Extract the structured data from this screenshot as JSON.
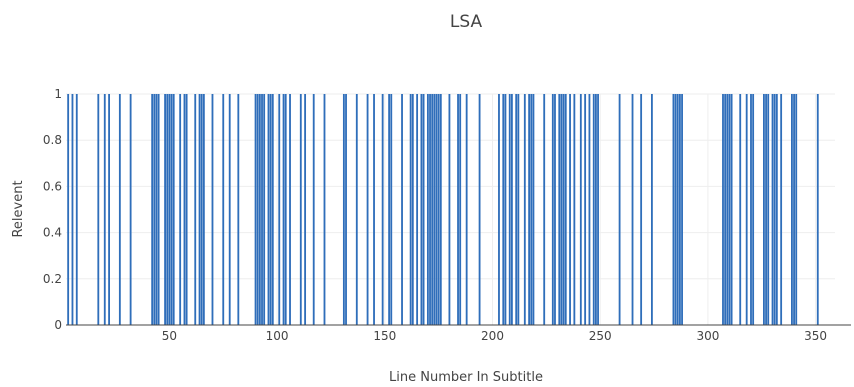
{
  "chart_data": {
    "type": "bar",
    "title": "LSA",
    "xlabel": "Line Number In Subtitle",
    "ylabel": "Relevent",
    "xlim": [
      2,
      359
    ],
    "ylim": [
      0,
      1
    ],
    "x_ticks": [
      50,
      100,
      150,
      200,
      250,
      300,
      350
    ],
    "x_tick_labels": [
      "50",
      "100",
      "150",
      "200",
      "250",
      "300",
      "350"
    ],
    "y_ticks": [
      0,
      0.2,
      0.4,
      0.6,
      0.8,
      1
    ],
    "y_tick_labels": [
      "0",
      "0.2",
      "0.4",
      "0.6",
      "0.8",
      "1"
    ],
    "grid": true,
    "bar_color": "#2f6eba",
    "x": [
      3,
      5,
      7,
      17,
      20,
      22,
      27,
      32,
      42,
      43,
      44,
      45,
      48,
      49,
      50,
      51,
      52,
      55,
      57,
      58,
      62,
      64,
      65,
      66,
      70,
      75,
      78,
      82,
      90,
      91,
      92,
      93,
      94,
      96,
      97,
      98,
      101,
      103,
      104,
      106,
      111,
      113,
      117,
      122,
      131,
      132,
      137,
      142,
      145,
      149,
      152,
      153,
      158,
      162,
      163,
      165,
      167,
      168,
      170,
      171,
      172,
      173,
      174,
      175,
      176,
      180,
      184,
      185,
      188,
      194,
      203,
      205,
      206,
      208,
      209,
      211,
      212,
      215,
      217,
      218,
      219,
      224,
      228,
      229,
      231,
      232,
      233,
      234,
      236,
      238,
      241,
      243,
      245,
      247,
      248,
      249,
      259,
      265,
      269,
      274,
      284,
      285,
      286,
      287,
      288,
      307,
      308,
      309,
      310,
      311,
      315,
      318,
      320,
      321,
      326,
      327,
      328,
      330,
      331,
      332,
      334,
      339,
      340,
      341,
      351
    ],
    "values": [
      1,
      1,
      1,
      1,
      1,
      1,
      1,
      1,
      1,
      1,
      1,
      1,
      1,
      1,
      1,
      1,
      1,
      1,
      1,
      1,
      1,
      1,
      1,
      1,
      1,
      1,
      1,
      1,
      1,
      1,
      1,
      1,
      1,
      1,
      1,
      1,
      1,
      1,
      1,
      1,
      1,
      1,
      1,
      1,
      1,
      1,
      1,
      1,
      1,
      1,
      1,
      1,
      1,
      1,
      1,
      1,
      1,
      1,
      1,
      1,
      1,
      1,
      1,
      1,
      1,
      1,
      1,
      1,
      1,
      1,
      1,
      1,
      1,
      1,
      1,
      1,
      1,
      1,
      1,
      1,
      1,
      1,
      1,
      1,
      1,
      1,
      1,
      1,
      1,
      1,
      1,
      1,
      1,
      1,
      1,
      1,
      1,
      1,
      1,
      1,
      1,
      1,
      1,
      1,
      1,
      1,
      1,
      1,
      1,
      1,
      1,
      1,
      1,
      1,
      1,
      1,
      1,
      1,
      1,
      1,
      1,
      1,
      1,
      1,
      1
    ]
  }
}
